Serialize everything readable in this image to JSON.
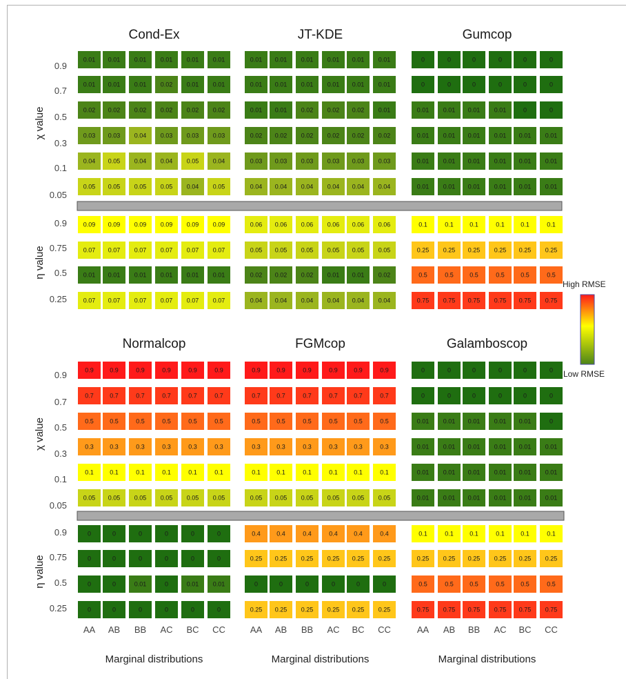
{
  "chart_data": {
    "type": "heatmap",
    "color_scale": {
      "high_label": "High RMSE",
      "low_label": "Low RMSE",
      "colors": [
        "#1f6e10",
        "#3a7c16",
        "#4c8418",
        "#6f9a1c",
        "#9bb51f",
        "#c8d418",
        "#e4ec10",
        "#ffff00",
        "#ffc61a",
        "#ff9a1a",
        "#ff6a1a",
        "#ff3a1a",
        "#ff1a1a"
      ]
    },
    "separator_color": "#a9a9a9",
    "x_categories": [
      "AA",
      "AB",
      "BB",
      "AC",
      "BC",
      "CC"
    ],
    "x_label": "Marginal distributions",
    "chi_label": "χ value",
    "eta_label": "η value",
    "chi_ticks": [
      "0.9",
      "0.7",
      "0.5",
      "0.3",
      "0.1",
      "0.05"
    ],
    "eta_ticks": [
      "0.9",
      "0.75",
      "0.5",
      "0.25"
    ],
    "panels": [
      {
        "title": "Cond-Ex",
        "chi": [
          [
            "0.01",
            "0.01",
            "0.01",
            "0.01",
            "0.01",
            "0.01"
          ],
          [
            "0.01",
            "0.01",
            "0.01",
            "0.02",
            "0.01",
            "0.01"
          ],
          [
            "0.02",
            "0.02",
            "0.02",
            "0.02",
            "0.02",
            "0.02"
          ],
          [
            "0.03",
            "0.03",
            "0.04",
            "0.03",
            "0.03",
            "0.03"
          ],
          [
            "0.04",
            "0.05",
            "0.04",
            "0.04",
            "0.05",
            "0.04"
          ],
          [
            "0.05",
            "0.05",
            "0.05",
            "0.05",
            "0.04",
            "0.05"
          ]
        ],
        "eta": [
          [
            "0.09",
            "0.09",
            "0.09",
            "0.09",
            "0.09",
            "0.09"
          ],
          [
            "0.07",
            "0.07",
            "0.07",
            "0.07",
            "0.07",
            "0.07"
          ],
          [
            "0.01",
            "0.01",
            "0.01",
            "0.01",
            "0.01",
            "0.01"
          ],
          [
            "0.07",
            "0.07",
            "0.07",
            "0.07",
            "0.07",
            "0.07"
          ]
        ]
      },
      {
        "title": "JT-KDE",
        "chi": [
          [
            "0.01",
            "0.01",
            "0.01",
            "0.01",
            "0.01",
            "0.01"
          ],
          [
            "0.01",
            "0.01",
            "0.01",
            "0.01",
            "0.01",
            "0.01"
          ],
          [
            "0.01",
            "0.01",
            "0.02",
            "0.02",
            "0.02",
            "0.01"
          ],
          [
            "0.02",
            "0.02",
            "0.02",
            "0.02",
            "0.02",
            "0.02"
          ],
          [
            "0.03",
            "0.03",
            "0.03",
            "0.03",
            "0.03",
            "0.03"
          ],
          [
            "0.04",
            "0.04",
            "0.04",
            "0.04",
            "0.04",
            "0.04"
          ]
        ],
        "eta": [
          [
            "0.06",
            "0.06",
            "0.06",
            "0.06",
            "0.06",
            "0.06"
          ],
          [
            "0.05",
            "0.05",
            "0.05",
            "0.05",
            "0.05",
            "0.05"
          ],
          [
            "0.02",
            "0.02",
            "0.02",
            "0.01",
            "0.01",
            "0.02"
          ],
          [
            "0.04",
            "0.04",
            "0.04",
            "0.04",
            "0.04",
            "0.04"
          ]
        ]
      },
      {
        "title": "Gumcop",
        "chi": [
          [
            "0",
            "0",
            "0",
            "0",
            "0",
            "0"
          ],
          [
            "0",
            "0",
            "0",
            "0",
            "0",
            "0"
          ],
          [
            "0.01",
            "0.01",
            "0.01",
            "0.01",
            "0",
            "0"
          ],
          [
            "0.01",
            "0.01",
            "0.01",
            "0.01",
            "0.01",
            "0.01"
          ],
          [
            "0.01",
            "0.01",
            "0.01",
            "0.01",
            "0.01",
            "0.01"
          ],
          [
            "0.01",
            "0.01",
            "0.01",
            "0.01",
            "0.01",
            "0.01"
          ]
        ],
        "eta": [
          [
            "0.1",
            "0.1",
            "0.1",
            "0.1",
            "0.1",
            "0.1"
          ],
          [
            "0.25",
            "0.25",
            "0.25",
            "0.25",
            "0.25",
            "0.25"
          ],
          [
            "0.5",
            "0.5",
            "0.5",
            "0.5",
            "0.5",
            "0.5"
          ],
          [
            "0.75",
            "0.75",
            "0.75",
            "0.75",
            "0.75",
            "0.75"
          ]
        ]
      },
      {
        "title": "Normalcop",
        "chi": [
          [
            "0.9",
            "0.9",
            "0.9",
            "0.9",
            "0.9",
            "0.9"
          ],
          [
            "0.7",
            "0.7",
            "0.7",
            "0.7",
            "0.7",
            "0.7"
          ],
          [
            "0.5",
            "0.5",
            "0.5",
            "0.5",
            "0.5",
            "0.5"
          ],
          [
            "0.3",
            "0.3",
            "0.3",
            "0.3",
            "0.3",
            "0.3"
          ],
          [
            "0.1",
            "0.1",
            "0.1",
            "0.1",
            "0.1",
            "0.1"
          ],
          [
            "0.05",
            "0.05",
            "0.05",
            "0.05",
            "0.05",
            "0.05"
          ]
        ],
        "eta": [
          [
            "0",
            "0",
            "0",
            "0",
            "0",
            "0"
          ],
          [
            "0",
            "0",
            "0",
            "0",
            "0",
            "0"
          ],
          [
            "0",
            "0",
            "0.01",
            "0",
            "0.01",
            "0.01"
          ],
          [
            "0",
            "0",
            "0",
            "0",
            "0",
            "0"
          ]
        ]
      },
      {
        "title": "FGMcop",
        "chi": [
          [
            "0.9",
            "0.9",
            "0.9",
            "0.9",
            "0.9",
            "0.9"
          ],
          [
            "0.7",
            "0.7",
            "0.7",
            "0.7",
            "0.7",
            "0.7"
          ],
          [
            "0.5",
            "0.5",
            "0.5",
            "0.5",
            "0.5",
            "0.5"
          ],
          [
            "0.3",
            "0.3",
            "0.3",
            "0.3",
            "0.3",
            "0.3"
          ],
          [
            "0.1",
            "0.1",
            "0.1",
            "0.1",
            "0.1",
            "0.1"
          ],
          [
            "0.05",
            "0.05",
            "0.05",
            "0.05",
            "0.05",
            "0.05"
          ]
        ],
        "eta": [
          [
            "0.4",
            "0.4",
            "0.4",
            "0.4",
            "0.4",
            "0.4"
          ],
          [
            "0.25",
            "0.25",
            "0.25",
            "0.25",
            "0.25",
            "0.25"
          ],
          [
            "0",
            "0",
            "0",
            "0",
            "0",
            "0"
          ],
          [
            "0.25",
            "0.25",
            "0.25",
            "0.25",
            "0.25",
            "0.25"
          ]
        ]
      },
      {
        "title": "Galamboscop",
        "chi": [
          [
            "0",
            "0",
            "0",
            "0",
            "0",
            "0"
          ],
          [
            "0",
            "0",
            "0",
            "0",
            "0",
            "0"
          ],
          [
            "0.01",
            "0.01",
            "0.01",
            "0.01",
            "0.01",
            "0"
          ],
          [
            "0.01",
            "0.01",
            "0.01",
            "0.01",
            "0.01",
            "0.01"
          ],
          [
            "0.01",
            "0.01",
            "0.01",
            "0.01",
            "0.01",
            "0.01"
          ],
          [
            "0.01",
            "0.01",
            "0.01",
            "0.01",
            "0.01",
            "0.01"
          ]
        ],
        "eta": [
          [
            "0.1",
            "0.1",
            "0.1",
            "0.1",
            "0.1",
            "0.1"
          ],
          [
            "0.25",
            "0.25",
            "0.25",
            "0.25",
            "0.25",
            "0.25"
          ],
          [
            "0.5",
            "0.5",
            "0.5",
            "0.5",
            "0.5",
            "0.5"
          ],
          [
            "0.75",
            "0.75",
            "0.75",
            "0.75",
            "0.75",
            "0.75"
          ]
        ]
      }
    ]
  }
}
